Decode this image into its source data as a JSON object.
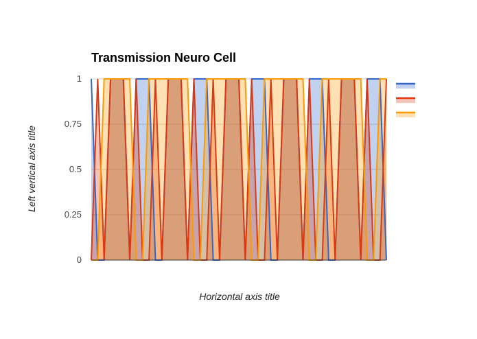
{
  "chart_data": {
    "type": "area",
    "title": "Transmission Neuro Cell",
    "xlabel": "Horizontal axis title",
    "ylabel": "Left vertical axis title",
    "ylim": [
      0,
      1
    ],
    "yticks": [
      "0",
      "0.25",
      "0.5",
      "0.75",
      "1"
    ],
    "grid": true,
    "legend": "right",
    "x": [
      0,
      1,
      2,
      3,
      4,
      5,
      6,
      7,
      8,
      9,
      10,
      11,
      12,
      13,
      14,
      15,
      16,
      17,
      18,
      19,
      20,
      21,
      22,
      23,
      24,
      25,
      26,
      27,
      28,
      29,
      30,
      31,
      32,
      33,
      34,
      35,
      36,
      37,
      38,
      39,
      40,
      41,
      42,
      43,
      44,
      45,
      46
    ],
    "series": [
      {
        "color": "#3366cc",
        "values": [
          1,
          0,
          0,
          1,
          1,
          1,
          0,
          1,
          1,
          1,
          0,
          0,
          1,
          1,
          1,
          0,
          1,
          1,
          1,
          0,
          0,
          1,
          1,
          1,
          0,
          1,
          1,
          1,
          0,
          0,
          1,
          1,
          1,
          0,
          1,
          1,
          1,
          0,
          0,
          1,
          1,
          1,
          0,
          1,
          1,
          1,
          0
        ]
      },
      {
        "color": "#dc3912",
        "values": [
          0,
          1,
          0,
          1,
          1,
          1,
          0,
          1,
          0,
          0,
          1,
          0,
          1,
          1,
          1,
          0,
          1,
          0,
          0,
          1,
          0,
          1,
          1,
          1,
          0,
          1,
          0,
          0,
          1,
          0,
          1,
          1,
          1,
          0,
          1,
          0,
          0,
          1,
          0,
          1,
          1,
          1,
          0,
          1,
          0,
          0,
          1
        ]
      },
      {
        "color": "#ff9900",
        "values": [
          0,
          0,
          1,
          1,
          1,
          1,
          1,
          0,
          0,
          1,
          1,
          1,
          1,
          1,
          1,
          1,
          0,
          0,
          1,
          1,
          1,
          1,
          1,
          1,
          1,
          0,
          0,
          1,
          1,
          1,
          1,
          1,
          1,
          1,
          0,
          0,
          1,
          1,
          1,
          1,
          1,
          1,
          1,
          0,
          0,
          1,
          1
        ]
      }
    ]
  }
}
